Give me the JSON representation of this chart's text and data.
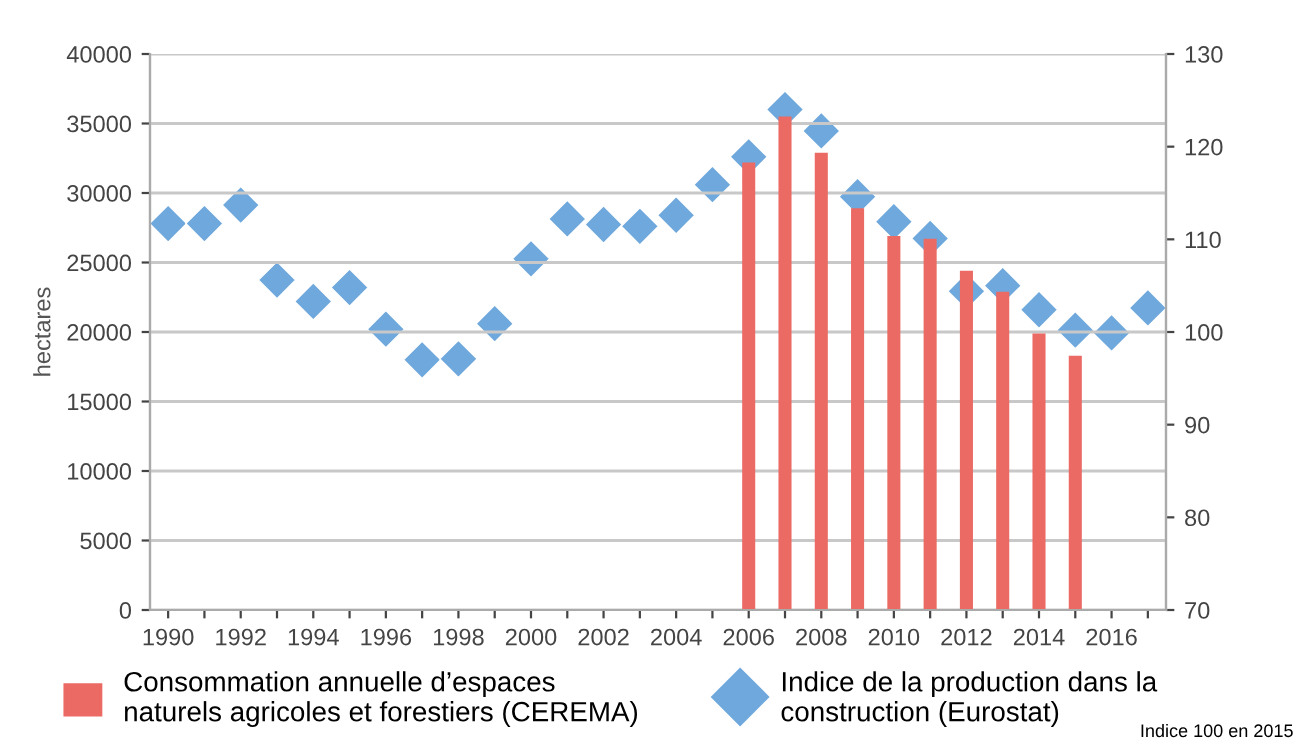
{
  "chart_data": {
    "type": "bar",
    "categories": [
      "1990",
      null,
      "1992",
      null,
      "1994",
      null,
      "1996",
      null,
      "1998",
      null,
      "2000",
      null,
      "2002",
      null,
      "2004",
      null,
      "2006",
      null,
      "2008",
      null,
      "2010",
      null,
      "2012",
      null,
      "2014",
      null,
      "2016",
      null
    ],
    "series": [
      {
        "name": "Consommation annuelle d’espaces\nnaturels agricoles et forestiers (CEREMA)",
        "color": "#ec6a64",
        "values": [
          null,
          null,
          null,
          null,
          null,
          null,
          null,
          null,
          null,
          null,
          null,
          null,
          null,
          null,
          null,
          null,
          32200,
          35500,
          32900,
          28900,
          26900,
          26700,
          24400,
          22900,
          19900,
          18300,
          null,
          null
        ]
      },
      {
        "name": "Indice de la production dans la\nconstruction (Eurostat)",
        "type": "scatter",
        "axis": "y2",
        "marker": "diamond",
        "color": "#6fa8dc",
        "values": [
          111.7,
          111.7,
          113.7,
          105.6,
          103.3,
          104.8,
          100.3,
          97.0,
          97.1,
          100.9,
          107.9,
          112.2,
          111.6,
          111.4,
          112.6,
          115.9,
          118.9,
          124.0,
          121.7,
          114.6,
          111.9,
          110.1,
          104.4,
          105.0,
          102.4,
          100.2,
          99.9,
          102.6
        ]
      }
    ],
    "ylabel": "hectares",
    "ylim": [
      0,
      40000
    ],
    "yticks": [
      0,
      5000,
      10000,
      15000,
      20000,
      25000,
      30000,
      35000,
      40000
    ],
    "y2lim": [
      70,
      130
    ],
    "y2ticks": [
      70,
      80,
      90,
      100,
      110,
      120,
      130
    ],
    "grid": "y",
    "legend": "bottom",
    "annotations": [
      "Indice 100 en 2015"
    ]
  }
}
